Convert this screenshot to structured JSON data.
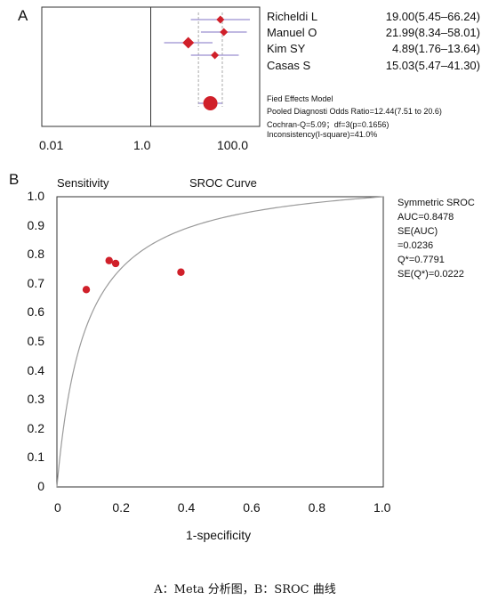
{
  "panel_a": {
    "letter": "A",
    "studies": [
      {
        "name": "Richeldi L",
        "or_text": "19.00(5.45–66.24)"
      },
      {
        "name": "Manuel O",
        "or_text": "21.99(8.34–58.01)"
      },
      {
        "name": "Kim SY",
        "or_text": "4.89(1.76–13.64)"
      },
      {
        "name": "Casas S",
        "or_text": "15.03(5.47–41.30)"
      }
    ],
    "model_title": "Fied Effects Model",
    "model_lines": [
      "Pooled Diagnosti Odds Ratio=12.44(7.51 to 20.6)",
      "Cochran-Q=5.09；df=3(p=0.1656)",
      "Inconsistency(I-square)=41.0%"
    ],
    "x_ticks": [
      "0.01",
      "1.0",
      "100.0"
    ]
  },
  "panel_b": {
    "letter": "B",
    "sensitivity_label": "Sensitivity",
    "curve_title": "SROC Curve",
    "xlabel": "1-specificity",
    "stats": [
      "Symmetric SROC",
      "AUC=0.8478",
      "SE(AUC)",
      "=0.0236",
      "Q*=0.7791",
      "SE(Q*)=0.0222"
    ],
    "y_ticks": [
      "1.0",
      "0.9",
      "0.8",
      "0.7",
      "0.6",
      "0.5",
      "0.4",
      "0.3",
      "0.2",
      "0.1",
      "0"
    ],
    "x_ticks": [
      "0",
      "0.2",
      "0.4",
      "0.6",
      "0.8",
      "1.0"
    ]
  },
  "caption": "A：Meta 分析图，B：SROC 曲线",
  "colors": {
    "marker": "#d0202a",
    "ci_line": "#9a8fd0",
    "axis": "#333333",
    "curve": "#9a9a9a",
    "grid_ghost": "#ececec"
  },
  "chart_data": [
    {
      "type": "scatter",
      "chart": "forest_plot",
      "x_scale": "log",
      "xlim": [
        0.01,
        100.0
      ],
      "series": [
        {
          "labels": [
            "Richeldi L",
            "Manuel O",
            "Kim SY",
            "Casas S"
          ],
          "estimate": [
            19.0,
            21.99,
            4.89,
            15.03
          ],
          "ci_low": [
            5.45,
            8.34,
            1.76,
            5.47
          ],
          "ci_high": [
            66.24,
            58.01,
            13.64,
            41.3
          ]
        }
      ],
      "pooled": {
        "estimate": 12.44,
        "ci_low": 7.51,
        "ci_high": 20.6
      },
      "reference_line": 1.0
    },
    {
      "type": "scatter",
      "chart": "sroc",
      "xlim": [
        0,
        1.0
      ],
      "ylim": [
        0,
        1.0
      ],
      "points": {
        "x": [
          0.09,
          0.16,
          0.18,
          0.38
        ],
        "y": [
          0.68,
          0.78,
          0.77,
          0.74
        ]
      },
      "curve": "Symmetric SROC",
      "auc": 0.8478,
      "q_star": 0.7791
    }
  ]
}
